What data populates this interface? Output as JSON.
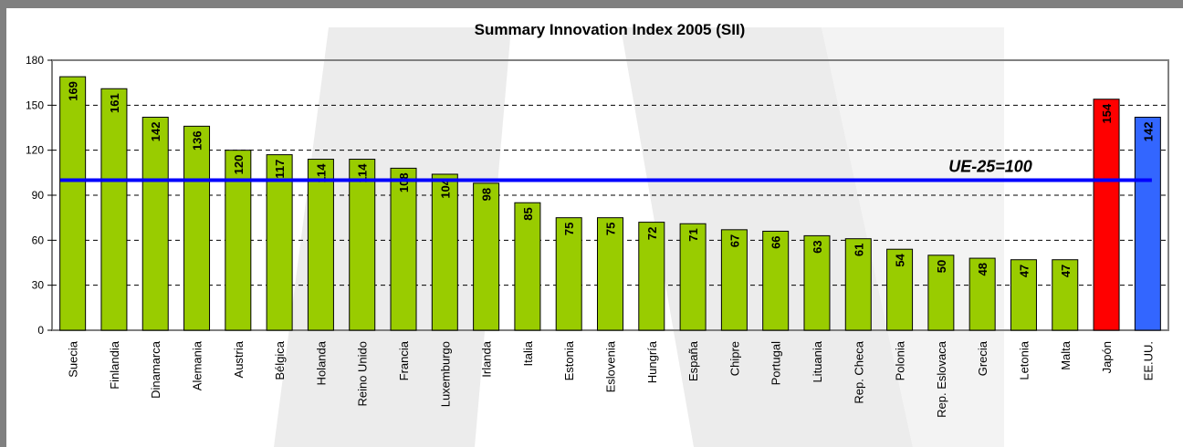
{
  "chart_data": {
    "type": "bar",
    "title": "Summary Innovation Index 2005 (SII)",
    "categories": [
      "Suecia",
      "Finlandia",
      "Dinamarca",
      "Alemania",
      "Austria",
      "Bélgica",
      "Holanda",
      "Reino Unido",
      "Francia",
      "Luxemburgo",
      "Irlanda",
      "Italia",
      "Estonia",
      "Eslovenia",
      "Hungría",
      "España",
      "Chipre",
      "Portugal",
      "Lituania",
      "Rep. Checa",
      "Polonia",
      "Rep. Eslovaca",
      "Grecia",
      "Letonia",
      "Malta",
      "Japón",
      "EE.UU."
    ],
    "values": [
      169,
      161,
      142,
      136,
      120,
      117,
      114,
      114,
      108,
      104,
      98,
      85,
      75,
      75,
      72,
      71,
      67,
      66,
      63,
      61,
      54,
      50,
      48,
      47,
      47,
      154,
      142
    ],
    "colors": [
      "#99cc00",
      "#99cc00",
      "#99cc00",
      "#99cc00",
      "#99cc00",
      "#99cc00",
      "#99cc00",
      "#99cc00",
      "#99cc00",
      "#99cc00",
      "#99cc00",
      "#99cc00",
      "#99cc00",
      "#99cc00",
      "#99cc00",
      "#99cc00",
      "#99cc00",
      "#99cc00",
      "#99cc00",
      "#99cc00",
      "#99cc00",
      "#99cc00",
      "#99cc00",
      "#99cc00",
      "#99cc00",
      "#ff0000",
      "#3366ff"
    ],
    "ylim": [
      0,
      180
    ],
    "yticks": [
      0,
      30,
      60,
      90,
      120,
      150,
      180
    ],
    "grid": true,
    "reference_line": {
      "value": 100,
      "label": "UE-25=100",
      "color": "#0000ff"
    }
  }
}
